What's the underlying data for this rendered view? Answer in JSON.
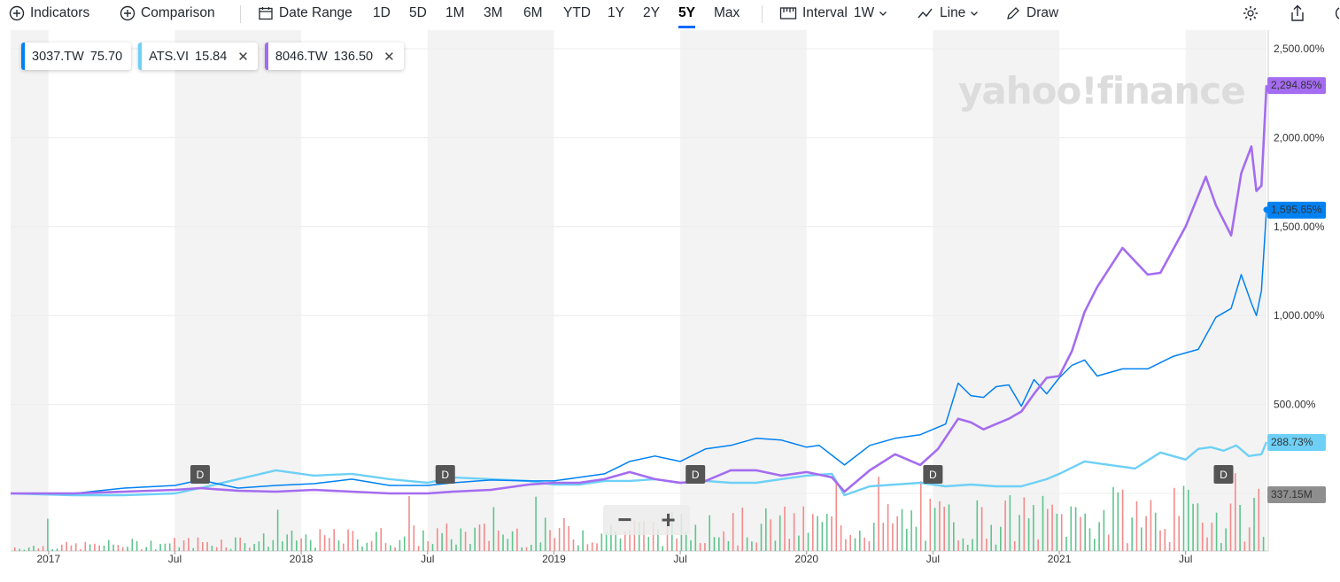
{
  "toolbar": {
    "indicators": "Indicators",
    "comparison": "Comparison",
    "date_range": "Date Range",
    "ranges": [
      "1D",
      "5D",
      "1M",
      "3M",
      "6M",
      "YTD",
      "1Y",
      "2Y",
      "5Y",
      "Max"
    ],
    "active_range": "5Y",
    "interval_label": "Interval",
    "interval_value": "1W",
    "chart_type": "Line",
    "draw": "Draw"
  },
  "legend": [
    {
      "symbol": "3037.TW",
      "value": "75.70",
      "color": "#0081f2",
      "removable": false
    },
    {
      "symbol": "ATS.VI",
      "value": "15.84",
      "color": "#6ed0f6",
      "removable": true
    },
    {
      "symbol": "8046.TW",
      "value": "136.50",
      "color": "#a46cf0",
      "removable": true
    }
  ],
  "watermark": "yahoo!finance",
  "zoom": {
    "minus": "−",
    "plus": "+"
  },
  "colors": {
    "primary": "#0081f2",
    "comparison_1": "#6ed0f6",
    "comparison_2": "#a46cf0",
    "volume_up": "#5fc48e",
    "volume_down": "#f28b8b",
    "band": "#f3f3f3"
  },
  "chart_data": {
    "type": "line",
    "y_axis": {
      "unit": "%",
      "ticks": [
        "2,500.00%",
        "2,000.00%",
        "1,500.00%",
        "1,000.00%",
        "500.00%"
      ],
      "tick_values": [
        2500,
        2000,
        1500,
        1000,
        500
      ],
      "range": [
        -500,
        2800
      ]
    },
    "x_axis": {
      "range": [
        2016.85,
        2021.82
      ],
      "ticks": [
        {
          "label": "2017",
          "x": 2017.0
        },
        {
          "label": "Jul",
          "x": 2017.5
        },
        {
          "label": "2018",
          "x": 2018.0
        },
        {
          "label": "Jul",
          "x": 2018.5
        },
        {
          "label": "2019",
          "x": 2019.0
        },
        {
          "label": "Jul",
          "x": 2019.5
        },
        {
          "label": "2020",
          "x": 2020.0
        },
        {
          "label": "Jul",
          "x": 2020.5
        },
        {
          "label": "2021",
          "x": 2021.0
        },
        {
          "label": "Jul",
          "x": 2021.5
        }
      ]
    },
    "series": [
      {
        "name": "3037.TW",
        "end_label": "1,595.65%",
        "color": "#0081f2",
        "points": [
          [
            2016.85,
            0
          ],
          [
            2017.1,
            0
          ],
          [
            2017.3,
            30
          ],
          [
            2017.5,
            45
          ],
          [
            2017.6,
            75
          ],
          [
            2017.75,
            30
          ],
          [
            2017.9,
            45
          ],
          [
            2018.05,
            55
          ],
          [
            2018.2,
            80
          ],
          [
            2018.35,
            45
          ],
          [
            2018.5,
            45
          ],
          [
            2018.6,
            60
          ],
          [
            2018.75,
            75
          ],
          [
            2018.9,
            70
          ],
          [
            2019.0,
            70
          ],
          [
            2019.1,
            90
          ],
          [
            2019.2,
            110
          ],
          [
            2019.3,
            180
          ],
          [
            2019.4,
            210
          ],
          [
            2019.5,
            180
          ],
          [
            2019.6,
            250
          ],
          [
            2019.7,
            270
          ],
          [
            2019.8,
            310
          ],
          [
            2019.9,
            300
          ],
          [
            2020.0,
            260
          ],
          [
            2020.05,
            270
          ],
          [
            2020.15,
            160
          ],
          [
            2020.25,
            270
          ],
          [
            2020.35,
            310
          ],
          [
            2020.45,
            330
          ],
          [
            2020.55,
            390
          ],
          [
            2020.6,
            620
          ],
          [
            2020.65,
            550
          ],
          [
            2020.7,
            540
          ],
          [
            2020.75,
            600
          ],
          [
            2020.8,
            610
          ],
          [
            2020.85,
            490
          ],
          [
            2020.9,
            640
          ],
          [
            2020.95,
            560
          ],
          [
            2021.0,
            650
          ],
          [
            2021.05,
            720
          ],
          [
            2021.1,
            750
          ],
          [
            2021.15,
            660
          ],
          [
            2021.25,
            700
          ],
          [
            2021.35,
            700
          ],
          [
            2021.45,
            770
          ],
          [
            2021.55,
            810
          ],
          [
            2021.62,
            990
          ],
          [
            2021.68,
            1040
          ],
          [
            2021.72,
            1230
          ],
          [
            2021.76,
            1070
          ],
          [
            2021.78,
            1000
          ],
          [
            2021.8,
            1140
          ],
          [
            2021.82,
            1595
          ]
        ]
      },
      {
        "name": "ATS.VI",
        "end_label": "288.73%",
        "color": "#6ed0f6",
        "points": [
          [
            2016.85,
            0
          ],
          [
            2017.1,
            -10
          ],
          [
            2017.3,
            -10
          ],
          [
            2017.5,
            0
          ],
          [
            2017.6,
            30
          ],
          [
            2017.75,
            80
          ],
          [
            2017.9,
            130
          ],
          [
            2018.05,
            100
          ],
          [
            2018.2,
            110
          ],
          [
            2018.35,
            80
          ],
          [
            2018.5,
            60
          ],
          [
            2018.6,
            90
          ],
          [
            2018.75,
            80
          ],
          [
            2018.9,
            70
          ],
          [
            2019.0,
            50
          ],
          [
            2019.1,
            50
          ],
          [
            2019.2,
            70
          ],
          [
            2019.3,
            70
          ],
          [
            2019.4,
            80
          ],
          [
            2019.5,
            60
          ],
          [
            2019.6,
            70
          ],
          [
            2019.7,
            60
          ],
          [
            2019.8,
            60
          ],
          [
            2019.9,
            80
          ],
          [
            2020.0,
            100
          ],
          [
            2020.1,
            110
          ],
          [
            2020.15,
            -10
          ],
          [
            2020.25,
            40
          ],
          [
            2020.35,
            50
          ],
          [
            2020.45,
            60
          ],
          [
            2020.55,
            40
          ],
          [
            2020.65,
            50
          ],
          [
            2020.75,
            40
          ],
          [
            2020.85,
            40
          ],
          [
            2020.95,
            80
          ],
          [
            2021.0,
            110
          ],
          [
            2021.1,
            180
          ],
          [
            2021.2,
            160
          ],
          [
            2021.3,
            140
          ],
          [
            2021.4,
            230
          ],
          [
            2021.5,
            190
          ],
          [
            2021.55,
            250
          ],
          [
            2021.6,
            260
          ],
          [
            2021.65,
            240
          ],
          [
            2021.7,
            270
          ],
          [
            2021.75,
            210
          ],
          [
            2021.8,
            220
          ],
          [
            2021.82,
            289
          ]
        ]
      },
      {
        "name": "8046.TW",
        "end_label": "2,294.85%",
        "color": "#a46cf0",
        "points": [
          [
            2016.85,
            0
          ],
          [
            2017.1,
            0
          ],
          [
            2017.3,
            10
          ],
          [
            2017.5,
            20
          ],
          [
            2017.6,
            30
          ],
          [
            2017.75,
            15
          ],
          [
            2017.9,
            10
          ],
          [
            2018.05,
            20
          ],
          [
            2018.2,
            10
          ],
          [
            2018.35,
            0
          ],
          [
            2018.5,
            0
          ],
          [
            2018.6,
            10
          ],
          [
            2018.75,
            20
          ],
          [
            2018.9,
            50
          ],
          [
            2019.0,
            60
          ],
          [
            2019.1,
            60
          ],
          [
            2019.2,
            80
          ],
          [
            2019.3,
            120
          ],
          [
            2019.4,
            80
          ],
          [
            2019.5,
            60
          ],
          [
            2019.6,
            70
          ],
          [
            2019.7,
            130
          ],
          [
            2019.8,
            130
          ],
          [
            2019.9,
            100
          ],
          [
            2020.0,
            120
          ],
          [
            2020.1,
            90
          ],
          [
            2020.15,
            10
          ],
          [
            2020.25,
            130
          ],
          [
            2020.35,
            220
          ],
          [
            2020.45,
            160
          ],
          [
            2020.52,
            250
          ],
          [
            2020.6,
            420
          ],
          [
            2020.65,
            400
          ],
          [
            2020.7,
            360
          ],
          [
            2020.75,
            390
          ],
          [
            2020.8,
            420
          ],
          [
            2020.85,
            460
          ],
          [
            2020.9,
            560
          ],
          [
            2020.95,
            650
          ],
          [
            2021.0,
            660
          ],
          [
            2021.05,
            800
          ],
          [
            2021.1,
            1020
          ],
          [
            2021.15,
            1160
          ],
          [
            2021.25,
            1380
          ],
          [
            2021.35,
            1230
          ],
          [
            2021.4,
            1240
          ],
          [
            2021.5,
            1500
          ],
          [
            2021.58,
            1780
          ],
          [
            2021.62,
            1620
          ],
          [
            2021.68,
            1450
          ],
          [
            2021.72,
            1800
          ],
          [
            2021.76,
            1950
          ],
          [
            2021.78,
            1700
          ],
          [
            2021.8,
            1730
          ],
          [
            2021.82,
            2295
          ]
        ]
      }
    ],
    "volume": {
      "end_label": "337.15M"
    },
    "events": [
      {
        "label": "D",
        "x": 2017.6
      },
      {
        "label": "D",
        "x": 2018.57
      },
      {
        "label": "D",
        "x": 2019.56
      },
      {
        "label": "D",
        "x": 2020.5
      },
      {
        "label": "D",
        "x": 2021.65
      }
    ]
  }
}
